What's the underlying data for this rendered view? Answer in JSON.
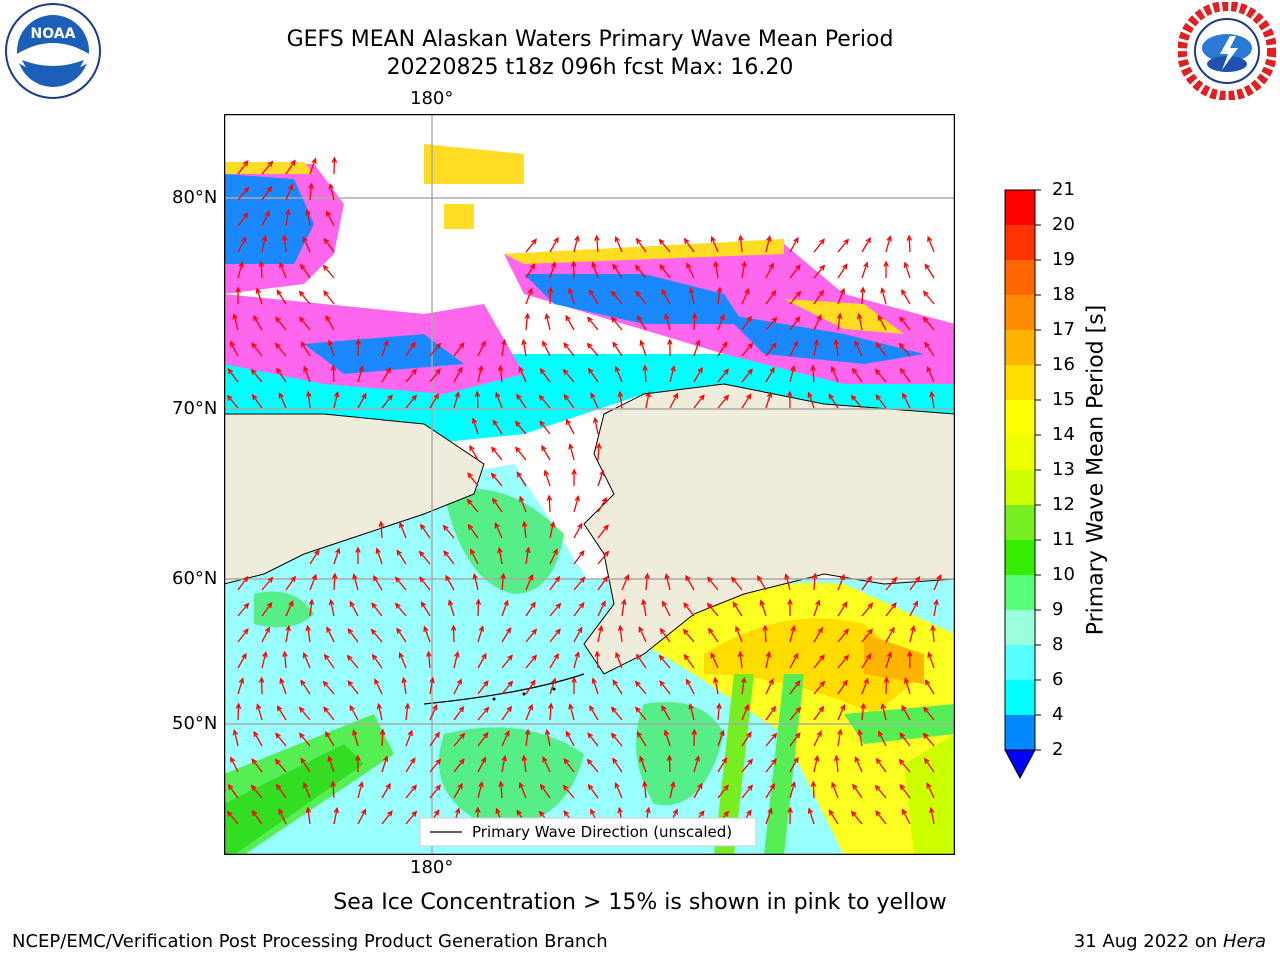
{
  "header": {
    "title_line1": "GEFS MEAN Alaskan Waters Primary Wave Mean Period",
    "title_line2": "20220825 t18z 096h fcst   Max: 16.20"
  },
  "logos": {
    "left": "noaa-logo",
    "left_text": "NOAA",
    "right": "national-weather-service-logo"
  },
  "map": {
    "lon_label_top": "180°",
    "lon_label_bottom": "180°",
    "lat_labels": [
      "80°N",
      "70°N",
      "60°N",
      "50°N"
    ],
    "legend_text": "Primary Wave Direction (unscaled)",
    "land_color": "#efecdc",
    "arrow_color": "#ff0000"
  },
  "colorbar": {
    "title": "Primary Wave Mean Period [s]",
    "ticks": [
      "21",
      "20",
      "19",
      "18",
      "17",
      "16",
      "15",
      "14",
      "13",
      "12",
      "11",
      "10",
      "9",
      "8",
      "6",
      "4",
      "2"
    ],
    "colors": [
      "#ff0000",
      "#ff3300",
      "#ff6600",
      "#ff8c00",
      "#ffb400",
      "#ffdd00",
      "#ffff00",
      "#eeff00",
      "#ccff00",
      "#77ee22",
      "#33ee00",
      "#55ff77",
      "#99ffdd",
      "#55ffff",
      "#00ffff",
      "#0088ff"
    ],
    "extend_color": "#0000ff"
  },
  "subtitle": "Sea Ice Concentration > 15% is shown in pink to yellow",
  "footer": {
    "left": "NCEP/EMC/Verification Post Processing Product Generation Branch",
    "right_date": "31 Aug 2022 on ",
    "right_machine": "Hera"
  }
}
